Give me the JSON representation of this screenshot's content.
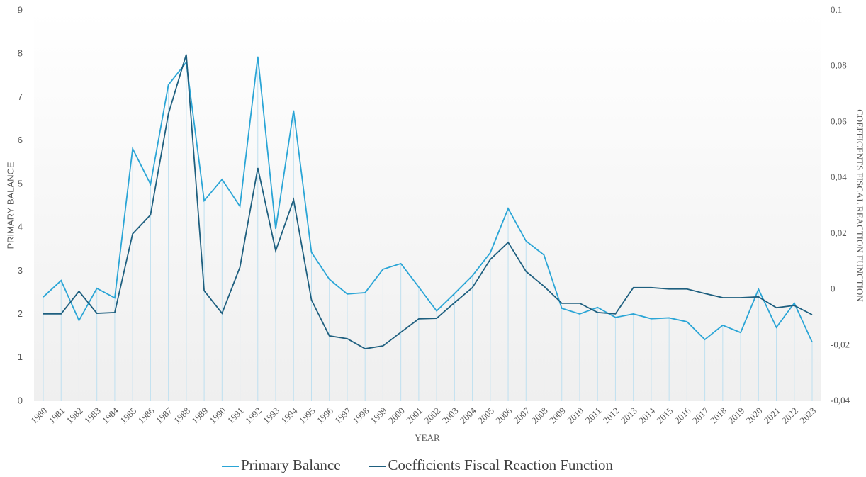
{
  "chart_data": {
    "type": "line",
    "x_label": "YEAR",
    "y_label": "PRIMARY BALANCE",
    "y2_label": "COEFFICENTS FISCAL REACTION FUNCTION",
    "categories": [
      "1980",
      "1981",
      "1982",
      "1983",
      "1984",
      "1985",
      "1986",
      "1987",
      "1988",
      "1989",
      "1990",
      "1991",
      "1992",
      "1993",
      "1994",
      "1995",
      "1996",
      "1997",
      "1998",
      "1999",
      "2000",
      "2001",
      "2002",
      "2003",
      "2004",
      "2005",
      "2006",
      "2007",
      "2008",
      "2009",
      "2010",
      "2011",
      "2012",
      "2013",
      "2014",
      "2015",
      "2016",
      "2017",
      "2018",
      "2019",
      "2020",
      "2021",
      "2022",
      "2023"
    ],
    "series": [
      {
        "name": "Primary Balance",
        "color": "#2aa5d6",
        "axis": "y",
        "values": [
          2.4,
          2.78,
          1.86,
          2.6,
          2.38,
          5.82,
          5.0,
          7.29,
          7.81,
          4.62,
          5.11,
          4.49,
          7.94,
          3.97,
          6.7,
          3.43,
          2.81,
          2.47,
          2.5,
          3.04,
          3.17,
          2.63,
          2.08,
          2.48,
          2.89,
          3.42,
          4.44,
          3.69,
          3.37,
          2.14,
          2.01,
          2.16,
          1.93,
          2.01,
          1.9,
          1.92,
          1.83,
          1.42,
          1.75,
          1.58,
          2.58,
          1.7,
          2.26,
          1.36
        ]
      },
      {
        "name": "Coefficients Fiscal Reaction Function",
        "color": "#1e5f7f",
        "axis": "y2",
        "values": [
          -0.0087,
          -0.0087,
          -0.0006,
          -0.0085,
          -0.0082,
          0.02,
          0.0268,
          0.063,
          0.0843,
          -0.0004,
          -0.0085,
          0.008,
          0.0436,
          0.0139,
          0.0322,
          -0.0037,
          -0.0166,
          -0.0176,
          -0.0212,
          -0.0202,
          -0.0153,
          -0.0105,
          -0.0103,
          -0.0047,
          0.0007,
          0.0108,
          0.0169,
          0.0065,
          0.0012,
          -0.0049,
          -0.0049,
          -0.0082,
          -0.0087,
          0.0007,
          0.0007,
          0.0002,
          0.0002,
          -0.0014,
          -0.0029,
          -0.0029,
          -0.0026,
          -0.0065,
          -0.0057,
          -0.009
        ]
      }
    ],
    "ylim": [
      0,
      9
    ],
    "yticks": [
      0,
      1,
      2,
      3,
      4,
      5,
      6,
      7,
      8,
      9
    ],
    "y2lim": [
      -0.04,
      0.1
    ],
    "y2ticks": [
      {
        "value": -0.04,
        "label": "-0,04"
      },
      {
        "value": -0.02,
        "label": "-0,02"
      },
      0,
      {
        "value": 0.02,
        "label": "0,02"
      },
      {
        "value": 0.04,
        "label": "0,04"
      },
      {
        "value": 0.06,
        "label": "0,06"
      },
      {
        "value": 0.08,
        "label": "0,08"
      },
      {
        "value": 0.1,
        "label": "0,1"
      }
    ],
    "drop_lines": true,
    "legend": "bottom"
  }
}
